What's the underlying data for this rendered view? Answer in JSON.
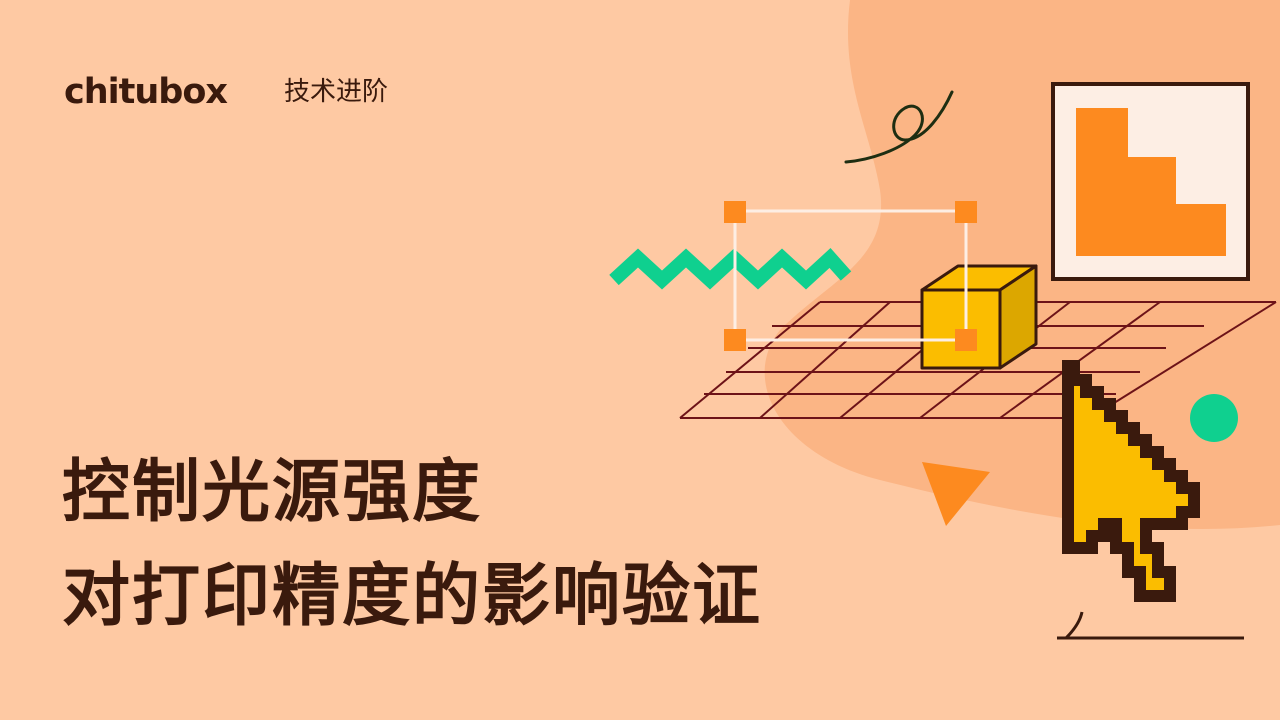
{
  "brand": {
    "name": "chitubox",
    "category": "技术进阶"
  },
  "headline": {
    "line1": "控制光源强度",
    "line2": "对打印精度的影响验证"
  },
  "colors": {
    "background": "#fec9a3",
    "blob": "#fbb585",
    "ink": "#3a1a0d",
    "orange": "#fd8a1f",
    "green": "#0fd08f",
    "yellow": "#fbbd00",
    "yellow_shade": "#dca700",
    "frame_fill": "#fdeee4"
  }
}
